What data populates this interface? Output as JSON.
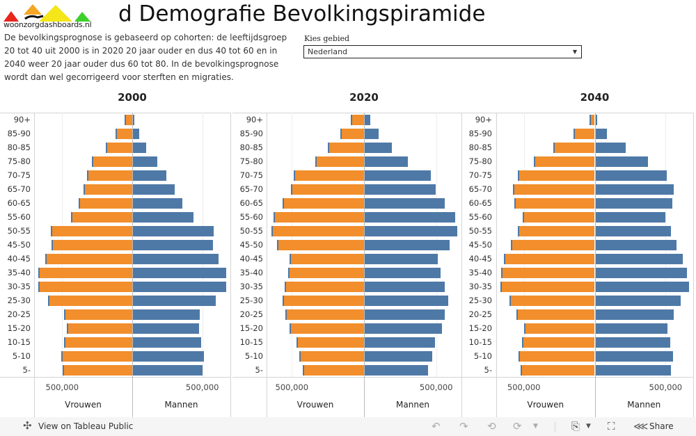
{
  "header": {
    "logo_text": "woonzorgdashboards.nl",
    "title": "d Demografie Bevolkingspiramide",
    "description": "De bevolkingsprognose is gebaseerd op cohorten: de leeftijdsgroep 20 tot 40 uit 2000 is in 2020 20 jaar ouder en dus 40 tot 60 en in 2040 weer 20 jaar ouder dus 60 tot 80. In de bevolkingsprognose wordt dan wel gecorrigeerd voor sterften en migraties."
  },
  "filter": {
    "label": "Kies gebied",
    "selected": "Nederland"
  },
  "colors": {
    "vrouwen": "#f28e2b",
    "mannen": "#4e79a7"
  },
  "chart_data": [
    {
      "type": "bar",
      "orientation": "horizontal-pyramid",
      "title": "2000",
      "categories": [
        "90+",
        "85-90",
        "80-85",
        "75-80",
        "70-75",
        "65-70",
        "60-65",
        "55-60",
        "50-55",
        "45-50",
        "40-45",
        "35-40",
        "30-35",
        "25-30",
        "20-25",
        "15-20",
        "10-15",
        "5-10",
        "5-"
      ],
      "series": [
        {
          "name": "Vrouwen",
          "values": [
            54000,
            118000,
            188000,
            286000,
            321000,
            350000,
            380000,
            439000,
            582000,
            577000,
            622000,
            668000,
            668000,
            602000,
            489000,
            469000,
            489000,
            508000,
            498000
          ]
        },
        {
          "name": "Mannen",
          "values": [
            12000,
            43000,
            92000,
            176000,
            240000,
            299000,
            354000,
            433000,
            576000,
            571000,
            610000,
            665000,
            665000,
            591000,
            477000,
            472000,
            487000,
            507000,
            497000
          ]
        }
      ],
      "xticks": [
        "500,000",
        "500,000"
      ],
      "xlim": [
        -700000,
        700000
      ]
    },
    {
      "type": "bar",
      "orientation": "horizontal-pyramid",
      "title": "2020",
      "categories": [
        "90+",
        "85-90",
        "80-85",
        "75-80",
        "70-75",
        "65-70",
        "60-65",
        "55-60",
        "50-55",
        "45-50",
        "40-45",
        "35-40",
        "30-35",
        "25-30",
        "20-25",
        "15-20",
        "10-15",
        "5-10",
        "5-"
      ],
      "series": [
        {
          "name": "Vrouwen",
          "values": [
            92000,
            164000,
            251000,
            338000,
            487000,
            507000,
            564000,
            627000,
            642000,
            603000,
            516000,
            526000,
            550000,
            564000,
            545000,
            516000,
            468000,
            449000,
            425000
          ]
        },
        {
          "name": "Mannen",
          "values": [
            37000,
            95000,
            187000,
            297000,
            457000,
            490000,
            553000,
            626000,
            640000,
            587000,
            505000,
            524000,
            553000,
            577000,
            553000,
            534000,
            486000,
            466000,
            437000
          ]
        }
      ],
      "xticks": [
        "500,000",
        "500,000"
      ],
      "xlim": [
        -675000,
        675000
      ]
    },
    {
      "type": "bar",
      "orientation": "horizontal-pyramid",
      "title": "2040",
      "categories": [
        "90+",
        "85-90",
        "80-85",
        "75-80",
        "70-75",
        "65-70",
        "60-65",
        "55-60",
        "50-55",
        "45-50",
        "40-45",
        "35-40",
        "30-35",
        "25-30",
        "20-25",
        "15-20",
        "10-15",
        "5-10",
        "5-"
      ],
      "series": [
        {
          "name": "Vrouwen",
          "values": [
            39000,
            148000,
            290000,
            428000,
            541000,
            575000,
            565000,
            506000,
            541000,
            590000,
            639000,
            659000,
            664000,
            600000,
            551000,
            497000,
            511000,
            536000,
            521000
          ]
        },
        {
          "name": "Mannen",
          "values": [
            13000,
            82000,
            215000,
            372000,
            505000,
            554000,
            544000,
            495000,
            534000,
            574000,
            618000,
            647000,
            662000,
            603000,
            554000,
            510000,
            529000,
            549000,
            534000
          ]
        }
      ],
      "xticks": [
        "500,000",
        "500,000"
      ],
      "xlim": [
        -695000,
        695000
      ]
    }
  ],
  "toolbar": {
    "view_label": "View on Tableau Public",
    "share_label": "Share"
  }
}
